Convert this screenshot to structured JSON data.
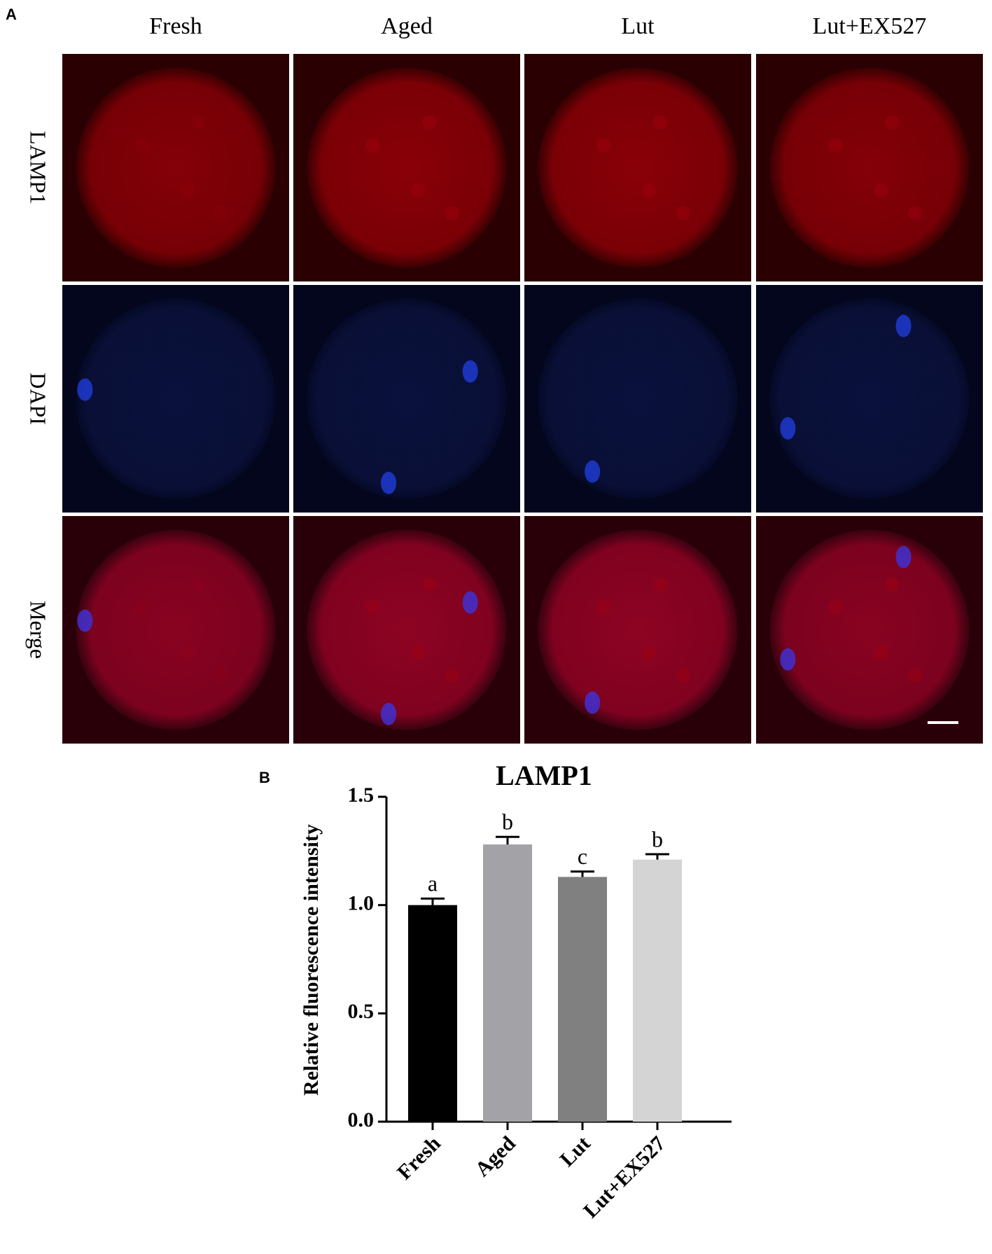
{
  "panel_a": {
    "label": "A",
    "columns": [
      "Fresh",
      "Aged",
      "Lut",
      "Lut+EX527"
    ],
    "rows": [
      "LAMP1",
      "DAPI",
      "Merge"
    ]
  },
  "chart_data": {
    "type": "bar",
    "panel_label": "B",
    "title": "LAMP1",
    "y_label": "Relative fluorescence intensity",
    "categories": [
      "Fresh",
      "Aged",
      "Lut",
      "Lut+EX527"
    ],
    "values": [
      1.0,
      1.28,
      1.13,
      1.21
    ],
    "errors": [
      0.03,
      0.035,
      0.025,
      0.025
    ],
    "significance": [
      "a",
      "b",
      "c",
      "b"
    ],
    "colors": [
      "#000000",
      "#a3a3a7",
      "#808080",
      "#d4d4d4"
    ],
    "ylim": [
      0,
      1.5
    ],
    "yticks": [
      {
        "value": 0,
        "label": "0.0"
      },
      0.5,
      {
        "value": 1,
        "label": "1.0"
      },
      1.5
    ]
  }
}
